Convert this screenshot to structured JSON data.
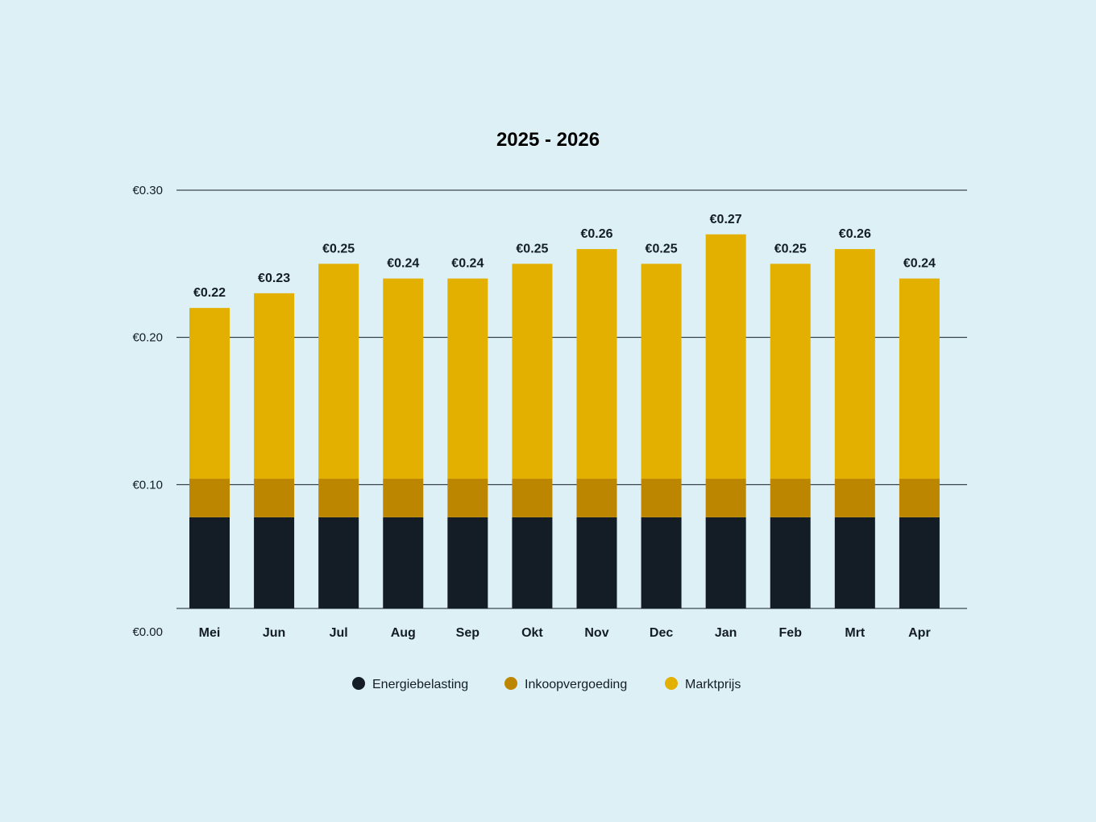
{
  "chart_data": {
    "type": "bar",
    "stacked": true,
    "title": "2025 - 2026",
    "xlabel": "",
    "ylabel": "",
    "categories": [
      "Mei",
      "Jun",
      "Jul",
      "Aug",
      "Sep",
      "Okt",
      "Nov",
      "Dec",
      "Jan",
      "Feb",
      "Mrt",
      "Apr"
    ],
    "series": [
      {
        "name": "Energiebelasting",
        "color": "#141c26",
        "values": [
          0.0778,
          0.0778,
          0.0778,
          0.0778,
          0.0778,
          0.0778,
          0.0778,
          0.0778,
          0.0778,
          0.0778,
          0.0778,
          0.0778
        ]
      },
      {
        "name": "Inkoopvergoeding",
        "color": "#bd8600",
        "values": [
          0.0262,
          0.0262,
          0.0262,
          0.0262,
          0.0262,
          0.0262,
          0.0262,
          0.0262,
          0.0262,
          0.0262,
          0.0262,
          0.0262
        ]
      },
      {
        "name": "Marktprijs",
        "color": "#e3b000",
        "values": [
          0.116,
          0.126,
          0.146,
          0.136,
          0.136,
          0.146,
          0.156,
          0.146,
          0.166,
          0.146,
          0.156,
          0.136
        ]
      }
    ],
    "totals_labels": [
      "€0.22",
      "€0.23",
      "€0.25",
      "€0.24",
      "€0.24",
      "€0.25",
      "€0.26",
      "€0.25",
      "€0.27",
      "€0.25",
      "€0.26",
      "€0.24"
    ],
    "totals": [
      0.22,
      0.23,
      0.25,
      0.24,
      0.24,
      0.25,
      0.26,
      0.25,
      0.27,
      0.25,
      0.26,
      0.24
    ],
    "ylim": [
      0,
      0.3
    ],
    "yticks": [
      0,
      0.1,
      0.2,
      0.3
    ],
    "ytick_labels": [
      "€0.00",
      "€0.10",
      "€0.20",
      "€0.30"
    ],
    "grid": true,
    "legend_position": "bottom-center"
  },
  "colors": {
    "background": "#dcf0f6",
    "text": "#141c26",
    "gridline": "#141c26"
  }
}
